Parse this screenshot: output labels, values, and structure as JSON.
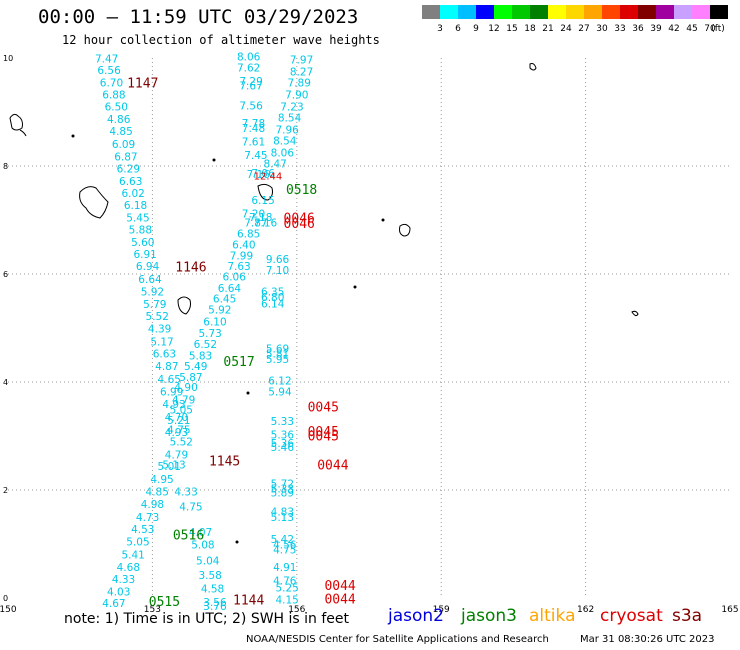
{
  "header": {
    "title": "00:00 – 11:59 UTC 03/29/2023",
    "subtitle": "12 hour collection of altimeter wave heights"
  },
  "scale_bar": {
    "colors": [
      "#808080",
      "#00ffff",
      "#00bfff",
      "#0000ff",
      "#00ff00",
      "#00c800",
      "#008000",
      "#ffff00",
      "#ffd700",
      "#ffa500",
      "#ff4500",
      "#dd0000",
      "#800000",
      "#a000a0",
      "#c8a0ff",
      "#ff80ff",
      "#000000"
    ],
    "labels": [
      "3",
      "6",
      "9",
      "12",
      "15",
      "18",
      "21",
      "24",
      "27",
      "30",
      "33",
      "36",
      "39",
      "42",
      "45",
      "70",
      "(ft)"
    ]
  },
  "colors": {
    "jason2": "#0000dd",
    "jason3": "#008000",
    "altika": "#ffa500",
    "cryosat": "#dd0000",
    "s3a": "#800000",
    "swh": "#00c8e8"
  },
  "axes": {
    "x_ticks": [
      "150",
      "153",
      "156",
      "159",
      "162",
      "165"
    ],
    "y_ticks": [
      "0",
      "2",
      "4",
      "6",
      "8",
      "10"
    ]
  },
  "swh_labels": [
    {
      "t": "7.47",
      "lon": 152.05,
      "lat": 9.92
    },
    {
      "t": "6.56",
      "lon": 152.1,
      "lat": 9.7
    },
    {
      "t": "6.70",
      "lon": 152.15,
      "lat": 9.47
    },
    {
      "t": "6.88",
      "lon": 152.2,
      "lat": 9.25
    },
    {
      "t": "6.50",
      "lon": 152.25,
      "lat": 9.03
    },
    {
      "t": "4.86",
      "lon": 152.3,
      "lat": 8.8
    },
    {
      "t": "4.85",
      "lon": 152.35,
      "lat": 8.57
    },
    {
      "t": "6.09",
      "lon": 152.4,
      "lat": 8.33
    },
    {
      "t": "6.87",
      "lon": 152.45,
      "lat": 8.1
    },
    {
      "t": "6.29",
      "lon": 152.5,
      "lat": 7.88
    },
    {
      "t": "6.63",
      "lon": 152.55,
      "lat": 7.65
    },
    {
      "t": "6.02",
      "lon": 152.6,
      "lat": 7.43
    },
    {
      "t": "6.18",
      "lon": 152.65,
      "lat": 7.2
    },
    {
      "t": "5.45",
      "lon": 152.7,
      "lat": 6.97
    },
    {
      "t": "5.88",
      "lon": 152.75,
      "lat": 6.75
    },
    {
      "t": "5.60",
      "lon": 152.8,
      "lat": 6.52
    },
    {
      "t": "6.91",
      "lon": 152.85,
      "lat": 6.3
    },
    {
      "t": "6.94",
      "lon": 152.9,
      "lat": 6.07
    },
    {
      "t": "6.64",
      "lon": 152.95,
      "lat": 5.83
    },
    {
      "t": "5.92",
      "lon": 153.0,
      "lat": 5.6
    },
    {
      "t": "5.79",
      "lon": 153.05,
      "lat": 5.37
    },
    {
      "t": "5.52",
      "lon": 153.1,
      "lat": 5.15
    },
    {
      "t": "4.39",
      "lon": 153.15,
      "lat": 4.92
    },
    {
      "t": "5.17",
      "lon": 153.2,
      "lat": 4.68
    },
    {
      "t": "6.63",
      "lon": 153.25,
      "lat": 4.45
    },
    {
      "t": "4.87",
      "lon": 153.3,
      "lat": 4.22
    },
    {
      "t": "4.65",
      "lon": 153.35,
      "lat": 3.98
    },
    {
      "t": "6.99",
      "lon": 153.4,
      "lat": 3.75
    },
    {
      "t": "4.93",
      "lon": 153.45,
      "lat": 3.52
    },
    {
      "t": "4.70",
      "lon": 153.5,
      "lat": 3.28
    },
    {
      "t": "4.75",
      "lon": 153.55,
      "lat": 3.05
    },
    {
      "t": "5.52",
      "lon": 153.6,
      "lat": 2.82
    },
    {
      "t": "4.79",
      "lon": 153.5,
      "lat": 2.58
    },
    {
      "t": "5.01",
      "lon": 153.35,
      "lat": 2.37
    },
    {
      "t": "4.95",
      "lon": 153.2,
      "lat": 2.13
    },
    {
      "t": "4.85",
      "lon": 153.1,
      "lat": 1.9
    },
    {
      "t": "4.98",
      "lon": 153.0,
      "lat": 1.67
    },
    {
      "t": "4.73",
      "lon": 152.9,
      "lat": 1.43
    },
    {
      "t": "4.53",
      "lon": 152.8,
      "lat": 1.2
    },
    {
      "t": "5.05",
      "lon": 152.7,
      "lat": 0.97
    },
    {
      "t": "5.41",
      "lon": 152.6,
      "lat": 0.73
    },
    {
      "t": "4.68",
      "lon": 152.5,
      "lat": 0.5
    },
    {
      "t": "4.33",
      "lon": 152.4,
      "lat": 0.28
    },
    {
      "t": "4.03",
      "lon": 152.3,
      "lat": 0.05
    },
    {
      "t": "4.67",
      "lon": 152.2,
      "lat": -0.17
    },
    {
      "t": "8.06",
      "lon": 155.0,
      "lat": 9.95
    },
    {
      "t": "7.62",
      "lon": 155.0,
      "lat": 9.75
    },
    {
      "t": "7.29",
      "lon": 155.05,
      "lat": 9.5
    },
    {
      "t": "7.67",
      "lon": 155.05,
      "lat": 9.42
    },
    {
      "t": "7.56",
      "lon": 155.05,
      "lat": 9.05
    },
    {
      "t": "7.78",
      "lon": 155.1,
      "lat": 8.72
    },
    {
      "t": "7.48",
      "lon": 155.1,
      "lat": 8.63
    },
    {
      "t": "7.61",
      "lon": 155.1,
      "lat": 8.38
    },
    {
      "t": "7.45",
      "lon": 155.15,
      "lat": 8.13
    },
    {
      "t": "7.16",
      "lon": 155.2,
      "lat": 7.78
    },
    {
      "t": "7.06",
      "lon": 155.3,
      "lat": 7.8
    },
    {
      "t": "6.15",
      "lon": 155.3,
      "lat": 7.3
    },
    {
      "t": "7.20",
      "lon": 155.1,
      "lat": 7.05
    },
    {
      "t": "7.18",
      "lon": 155.25,
      "lat": 6.98
    },
    {
      "t": "7.87",
      "lon": 155.15,
      "lat": 6.88
    },
    {
      "t": "7.16",
      "lon": 155.35,
      "lat": 6.88
    },
    {
      "t": "6.85",
      "lon": 155.0,
      "lat": 6.68
    },
    {
      "t": "6.40",
      "lon": 154.9,
      "lat": 6.47
    },
    {
      "t": "7.99",
      "lon": 154.85,
      "lat": 6.27
    },
    {
      "t": "7.63",
      "lon": 154.8,
      "lat": 6.07
    },
    {
      "t": "6.06",
      "lon": 154.7,
      "lat": 5.88
    },
    {
      "t": "6.64",
      "lon": 154.6,
      "lat": 5.67
    },
    {
      "t": "6.45",
      "lon": 154.5,
      "lat": 5.47
    },
    {
      "t": "5.92",
      "lon": 154.4,
      "lat": 5.27
    },
    {
      "t": "6.10",
      "lon": 154.3,
      "lat": 5.05
    },
    {
      "t": "5.73",
      "lon": 154.2,
      "lat": 4.83
    },
    {
      "t": "6.52",
      "lon": 154.1,
      "lat": 4.63
    },
    {
      "t": "5.83",
      "lon": 154.0,
      "lat": 4.42
    },
    {
      "t": "5.49",
      "lon": 153.9,
      "lat": 4.22
    },
    {
      "t": "5.87",
      "lon": 153.8,
      "lat": 4.02
    },
    {
      "t": "4.90",
      "lon": 153.7,
      "lat": 3.83
    },
    {
      "t": "4.79",
      "lon": 153.65,
      "lat": 3.6
    },
    {
      "t": "5.05",
      "lon": 153.6,
      "lat": 3.42
    },
    {
      "t": "5.21",
      "lon": 153.55,
      "lat": 3.22
    },
    {
      "t": "4.93",
      "lon": 153.5,
      "lat": 3.0
    },
    {
      "t": "5.13",
      "lon": 153.45,
      "lat": 2.4
    },
    {
      "t": "4.33",
      "lon": 153.7,
      "lat": 1.9
    },
    {
      "t": "4.75",
      "lon": 153.8,
      "lat": 1.62
    },
    {
      "t": "4.07",
      "lon": 154.0,
      "lat": 1.15
    },
    {
      "t": "5.08",
      "lon": 154.05,
      "lat": 0.92
    },
    {
      "t": "5.04",
      "lon": 154.15,
      "lat": 0.62
    },
    {
      "t": "3.58",
      "lon": 154.2,
      "lat": 0.35
    },
    {
      "t": "4.58",
      "lon": 154.25,
      "lat": 0.1
    },
    {
      "t": "3.56",
      "lon": 154.3,
      "lat": -0.15
    },
    {
      "t": "3.76",
      "lon": 154.3,
      "lat": -0.22
    },
    {
      "t": "7.97",
      "lon": 156.1,
      "lat": 9.9
    },
    {
      "t": "8.27",
      "lon": 156.1,
      "lat": 9.68
    },
    {
      "t": "7.89",
      "lon": 156.05,
      "lat": 9.47
    },
    {
      "t": "7.90",
      "lon": 156.0,
      "lat": 9.25
    },
    {
      "t": "7.23",
      "lon": 155.9,
      "lat": 9.03
    },
    {
      "t": "8.54",
      "lon": 155.85,
      "lat": 8.82
    },
    {
      "t": "7.96",
      "lon": 155.8,
      "lat": 8.6
    },
    {
      "t": "8.54",
      "lon": 155.75,
      "lat": 8.4
    },
    {
      "t": "8.06",
      "lon": 155.7,
      "lat": 8.18
    },
    {
      "t": "8.47",
      "lon": 155.55,
      "lat": 7.97
    },
    {
      "t": "9.66",
      "lon": 155.6,
      "lat": 6.2
    },
    {
      "t": "7.10",
      "lon": 155.6,
      "lat": 6.0
    },
    {
      "t": "6.35",
      "lon": 155.5,
      "lat": 5.6
    },
    {
      "t": "6.80",
      "lon": 155.5,
      "lat": 5.5
    },
    {
      "t": "6.14",
      "lon": 155.5,
      "lat": 5.38
    },
    {
      "t": "5.69",
      "lon": 155.6,
      "lat": 4.55
    },
    {
      "t": "5.81",
      "lon": 155.6,
      "lat": 4.45
    },
    {
      "t": "5.95",
      "lon": 155.6,
      "lat": 4.35
    },
    {
      "t": "6.12",
      "lon": 155.65,
      "lat": 3.95
    },
    {
      "t": "5.94",
      "lon": 155.65,
      "lat": 3.75
    },
    {
      "t": "5.33",
      "lon": 155.7,
      "lat": 3.2
    },
    {
      "t": "5.36",
      "lon": 155.7,
      "lat": 2.95
    },
    {
      "t": "5.36",
      "lon": 155.7,
      "lat": 2.8
    },
    {
      "t": "5.46",
      "lon": 155.7,
      "lat": 2.72
    },
    {
      "t": "5.72",
      "lon": 155.7,
      "lat": 2.05
    },
    {
      "t": "5.33",
      "lon": 155.7,
      "lat": 1.95
    },
    {
      "t": "5.89",
      "lon": 155.7,
      "lat": 1.88
    },
    {
      "t": "4.83",
      "lon": 155.7,
      "lat": 1.53
    },
    {
      "t": "5.13",
      "lon": 155.7,
      "lat": 1.43
    },
    {
      "t": "5.42",
      "lon": 155.7,
      "lat": 1.02
    },
    {
      "t": "4.56",
      "lon": 155.75,
      "lat": 0.92
    },
    {
      "t": "4.75",
      "lon": 155.75,
      "lat": 0.82
    },
    {
      "t": "4.91",
      "lon": 155.75,
      "lat": 0.5
    },
    {
      "t": "4.76",
      "lon": 155.75,
      "lat": 0.25
    },
    {
      "t": "5.25",
      "lon": 155.8,
      "lat": 0.12
    },
    {
      "t": "4.15",
      "lon": 155.8,
      "lat": -0.1
    }
  ],
  "red_swh": [
    {
      "t": "12.44",
      "lon": 155.4,
      "lat": 7.75
    }
  ],
  "time_labels": [
    {
      "t": "1147",
      "sat": "s3a",
      "lon": 152.8,
      "lat": 9.45
    },
    {
      "t": "1146",
      "sat": "s3a",
      "lon": 153.8,
      "lat": 6.05
    },
    {
      "t": "1145",
      "sat": "s3a",
      "lon": 154.5,
      "lat": 2.45
    },
    {
      "t": "1144",
      "sat": "s3a",
      "lon": 155.0,
      "lat": -0.12
    },
    {
      "t": "0518",
      "sat": "jason3",
      "lon": 156.1,
      "lat": 7.48
    },
    {
      "t": "0517",
      "sat": "jason3",
      "lon": 154.8,
      "lat": 4.3
    },
    {
      "t": "0516",
      "sat": "jason3",
      "lon": 153.75,
      "lat": 1.08
    },
    {
      "t": "0515",
      "sat": "jason3",
      "lon": 153.25,
      "lat": -0.15
    },
    {
      "t": "0046",
      "sat": "cryosat",
      "lon": 156.05,
      "lat": 6.95
    },
    {
      "t": "0046",
      "sat": "cryosat",
      "lon": 156.05,
      "lat": 6.85
    },
    {
      "t": "0045",
      "sat": "cryosat",
      "lon": 156.55,
      "lat": 3.45
    },
    {
      "t": "0045",
      "sat": "cryosat",
      "lon": 156.55,
      "lat": 3.0
    },
    {
      "t": "0045",
      "sat": "cryosat",
      "lon": 156.55,
      "lat": 2.92
    },
    {
      "t": "0044",
      "sat": "cryosat",
      "lon": 156.75,
      "lat": 2.38
    },
    {
      "t": "0044",
      "sat": "cryosat",
      "lon": 156.9,
      "lat": 0.15
    },
    {
      "t": "0044",
      "sat": "cryosat",
      "lon": 156.9,
      "lat": -0.1
    }
  ],
  "footer": {
    "note": "note:  1) Time is in UTC;  2) SWH is in feet",
    "jason2": "jason2",
    "jason3": "jason3",
    "altika": "altika",
    "cryosat": "cryosat",
    "s3a": "s3a",
    "credit": "NOAA/NESDIS Center for Satellite Applications and Research",
    "stamp": "Mar 31 08:30:26 UTC 2023"
  }
}
